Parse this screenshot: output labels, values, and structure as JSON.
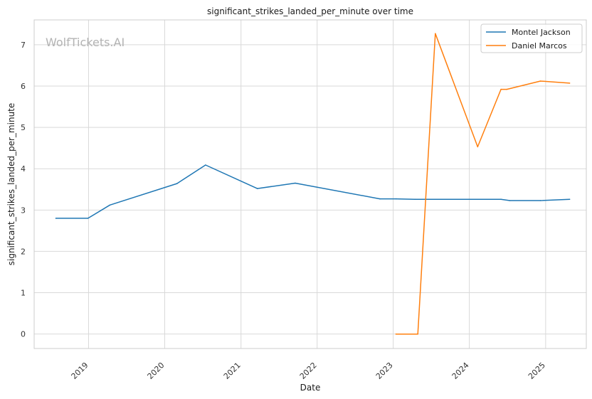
{
  "chart_data": {
    "type": "line",
    "title": "significant_strikes_landed_per_minute over time",
    "xlabel": "Date",
    "ylabel": "significant_strikes_landed_per_minute",
    "watermark": "WolfTickets.AI",
    "x_ticks": [
      "2019",
      "2020",
      "2021",
      "2022",
      "2023",
      "2024",
      "2025"
    ],
    "y_ticks": [
      0,
      1,
      2,
      3,
      4,
      5,
      6,
      7
    ],
    "ylim": [
      -0.35,
      7.6
    ],
    "xlim": [
      "2018-04-15",
      "2025-07-15"
    ],
    "grid": true,
    "legend_position": "top-right",
    "series": [
      {
        "name": "Montel Jackson",
        "color": "#1f77b4",
        "points": [
          [
            "2018-07-28",
            2.8
          ],
          [
            "2018-12-29",
            2.8
          ],
          [
            "2019-04-13",
            3.12
          ],
          [
            "2020-02-29",
            3.64
          ],
          [
            "2020-07-15",
            4.09
          ],
          [
            "2021-03-20",
            3.52
          ],
          [
            "2021-09-18",
            3.65
          ],
          [
            "2022-10-29",
            3.27
          ],
          [
            "2023-01-15",
            3.27
          ],
          [
            "2023-04-15",
            3.26
          ],
          [
            "2024-06-01",
            3.26
          ],
          [
            "2024-07-13",
            3.23
          ],
          [
            "2024-12-07",
            3.23
          ],
          [
            "2025-04-26",
            3.26
          ]
        ]
      },
      {
        "name": "Daniel Marcos",
        "color": "#ff7f0e",
        "points": [
          [
            "2023-01-14",
            0.0
          ],
          [
            "2023-04-29",
            0.0
          ],
          [
            "2023-07-22",
            7.27
          ],
          [
            "2024-02-10",
            4.53
          ],
          [
            "2024-06-01",
            5.92
          ],
          [
            "2024-06-29",
            5.92
          ],
          [
            "2024-12-07",
            6.12
          ],
          [
            "2025-04-26",
            6.07
          ]
        ]
      }
    ]
  }
}
